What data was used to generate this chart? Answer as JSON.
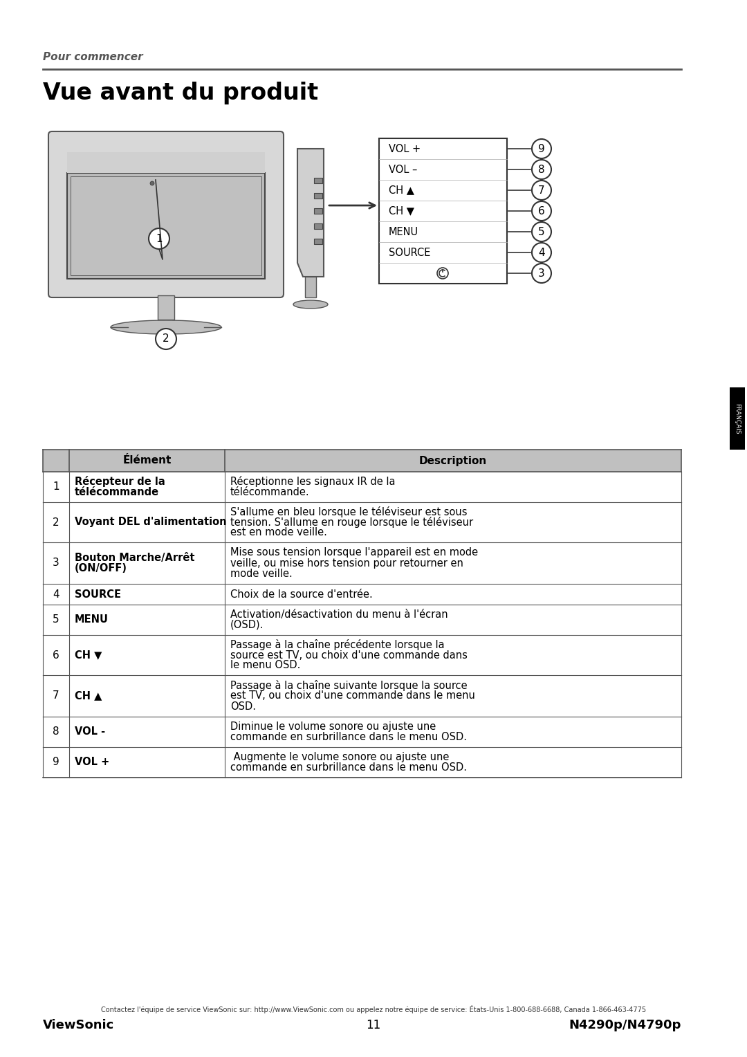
{
  "page_title_small": "Pour commencer",
  "page_title_large": "Vue avant du produit",
  "background_color": "#ffffff",
  "header_line_color": "#555555",
  "title_small_color": "#555555",
  "title_large_color": "#000000",
  "table_header_bg": "#c0c0c0",
  "table_border_color": "#555555",
  "table_rows": [
    [
      "1",
      "Récepteur de la\ntélécommande",
      "Réceptionne les signaux IR de la\ntélécommande."
    ],
    [
      "2",
      "Voyant DEL d'alimentation",
      "S'allume en bleu lorsque le téléviseur est sous\ntension. S'allume en rouge lorsque le téléviseur\nest en mode veille."
    ],
    [
      "3",
      "Bouton Marche/Arrêt\n(ON/OFF)",
      "Mise sous tension lorsque l'appareil est en mode\nveille, ou mise hors tension pour retourner en\nmode veille."
    ],
    [
      "4",
      "SOURCE",
      "Choix de la source d'entrée."
    ],
    [
      "5",
      "MENU",
      "Activation/désactivation du menu à l'écran\n(OSD)."
    ],
    [
      "6",
      "CH ▼",
      "Passage à la chaîne précédente lorsque la\nsource est TV, ou choix d'une commande dans\nle menu OSD."
    ],
    [
      "7",
      "CH ▲",
      "Passage à la chaîne suivante lorsque la source\nest TV, ou choix d'une commande dans le menu\nOSD."
    ],
    [
      "8",
      "VOL -",
      "Diminue le volume sonore ou ajuste une\ncommande en surbrillance dans le menu OSD."
    ],
    [
      "9",
      "VOL +",
      " Augmente le volume sonore ou ajuste une\ncommande en surbrillance dans le menu OSD."
    ]
  ],
  "footer_contact": "Contactez l'équipe de service ViewSonic sur: http://www.ViewSonic.com ou appelez notre équipe de service: États-Unis 1-800-688-6688, Canada 1-866-463-4775",
  "footer_left": "ViewSonic",
  "footer_center": "11",
  "footer_right": "N4290p/N4790p",
  "sidebar_text": "FRANÇAIS",
  "button_labels": [
    "VOL +",
    "VOL –",
    "CH ▲",
    "CH ▼",
    "MENU",
    "SOURCE",
    "⏻"
  ],
  "button_numbers": [
    "9",
    "8",
    "7",
    "6",
    "5",
    "4",
    "3"
  ]
}
